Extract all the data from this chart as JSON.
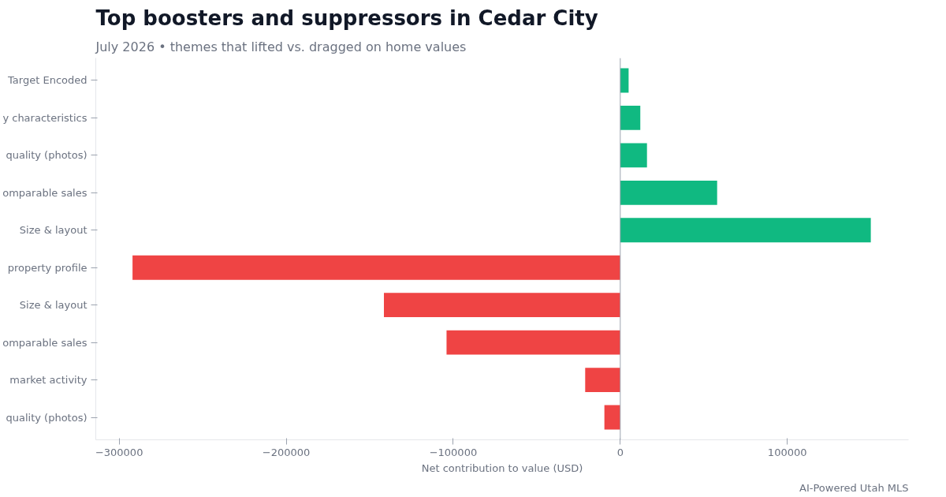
{
  "chart_data": {
    "type": "bar",
    "orientation": "horizontal",
    "title": "Top boosters and suppressors in Cedar City",
    "subtitle": "July 2026 • themes that lifted vs. dragged on home values",
    "xlabel": "Net contribution to value (USD)",
    "categories": [
      "Target Encoded",
      "y characteristics",
      "quality (photos)",
      "omparable sales",
      "Size & layout",
      "property profile",
      "Size & layout",
      "omparable sales",
      "market activity",
      "quality (photos)"
    ],
    "values": [
      5000,
      12000,
      16000,
      58000,
      150000,
      -292000,
      -141500,
      -104000,
      -21000,
      -9500
    ],
    "colors": [
      "#10b981",
      "#10b981",
      "#10b981",
      "#10b981",
      "#10b981",
      "#ef4444",
      "#ef4444",
      "#ef4444",
      "#ef4444",
      "#ef4444"
    ],
    "xlim": [
      -314000,
      172600
    ],
    "xticks": [
      {
        "value": -300000,
        "label": "−300000"
      },
      {
        "value": -200000,
        "label": "−200000"
      },
      {
        "value": -100000,
        "label": "−100000"
      },
      0,
      100000
    ],
    "ref_lines": [
      {
        "axis": "x",
        "value": 0,
        "color": "#9ca3af"
      }
    ],
    "grid": false,
    "annotations": [
      "AI-Powered Utah MLS"
    ]
  }
}
